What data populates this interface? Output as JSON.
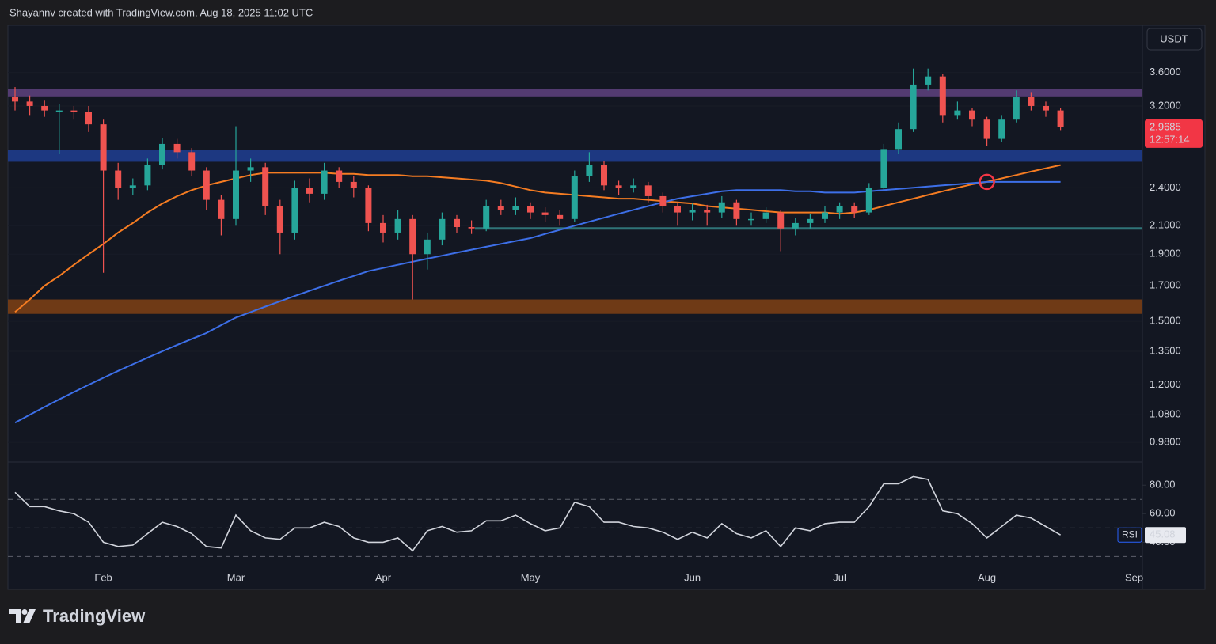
{
  "header": {
    "credit": "Shayannv created with TradingView.com, Aug 18, 2025 11:02 UTC"
  },
  "footer": {
    "brand": "TradingView"
  },
  "chart_data": [
    {
      "type": "candlestick",
      "currency": "USDT",
      "log_scale": true,
      "grid": true,
      "ylim": [
        0.917,
        4.25
      ],
      "yticks": [
        {
          "value": 0.98,
          "label": "0.9800"
        },
        {
          "value": 1.08,
          "label": "1.0800"
        },
        {
          "value": 1.2,
          "label": "1.2000"
        },
        {
          "value": 1.35,
          "label": "1.3500"
        },
        {
          "value": 1.5,
          "label": "1.5000"
        },
        {
          "value": 1.7,
          "label": "1.7000"
        },
        {
          "value": 1.9,
          "label": "1.9000"
        },
        {
          "value": 2.1,
          "label": "2.1000"
        },
        {
          "value": 2.4,
          "label": "2.4000"
        },
        {
          "value": 3.2,
          "label": "3.2000"
        },
        {
          "value": 3.6,
          "label": "3.6000"
        }
      ],
      "up_color": "#26a69a",
      "down_color": "#ef5350",
      "open": [
        3.3,
        3.25,
        3.2,
        3.15,
        3.15,
        3.13,
        3.0,
        2.55,
        2.4,
        2.42,
        2.6,
        2.8,
        2.72,
        2.55,
        2.3,
        2.15,
        2.55,
        2.58,
        2.25,
        2.05,
        2.4,
        2.35,
        2.55,
        2.45,
        2.4,
        2.12,
        2.05,
        2.15,
        1.9,
        2.0,
        2.15,
        2.09,
        2.08,
        2.25,
        2.22,
        2.25,
        2.2,
        2.18,
        2.15,
        2.5,
        2.6,
        2.42,
        2.4,
        2.42,
        2.33,
        2.25,
        2.2,
        2.22,
        2.2,
        2.28,
        2.15,
        2.15,
        2.2,
        2.08,
        2.12,
        2.15,
        2.2,
        2.25,
        2.2,
        2.4,
        2.75,
        2.95,
        3.45,
        3.55,
        3.1,
        3.15,
        3.05,
        2.85,
        3.05,
        3.3,
        3.2,
        3.15,
        null,
        null,
        null,
        null,
        null,
        null
      ],
      "high": [
        3.42,
        3.32,
        3.26,
        3.22,
        3.2,
        3.2,
        3.05,
        2.62,
        2.48,
        2.66,
        2.86,
        2.85,
        2.76,
        2.58,
        2.34,
        2.98,
        2.66,
        2.62,
        2.3,
        2.46,
        2.48,
        2.62,
        2.58,
        2.5,
        2.42,
        2.18,
        2.22,
        2.18,
        2.05,
        2.2,
        2.18,
        2.14,
        2.3,
        2.3,
        2.32,
        2.28,
        2.24,
        2.22,
        2.55,
        2.72,
        2.64,
        2.46,
        2.48,
        2.45,
        2.36,
        2.28,
        2.27,
        2.26,
        2.33,
        2.3,
        2.2,
        2.24,
        2.22,
        2.16,
        2.19,
        2.25,
        2.28,
        2.28,
        2.44,
        2.8,
        3.02,
        3.65,
        3.65,
        3.58,
        3.25,
        3.18,
        3.08,
        3.1,
        3.38,
        3.36,
        3.25,
        3.18,
        null,
        null,
        null,
        null,
        null,
        null
      ],
      "low": [
        3.15,
        3.1,
        3.08,
        2.7,
        3.05,
        2.92,
        1.78,
        2.3,
        2.34,
        2.38,
        2.56,
        2.66,
        2.5,
        2.22,
        2.03,
        2.1,
        2.45,
        2.18,
        1.9,
        2.0,
        2.28,
        2.3,
        2.4,
        2.32,
        2.06,
        1.98,
        2.0,
        1.62,
        1.8,
        1.96,
        2.05,
        2.04,
        2.06,
        2.18,
        2.18,
        2.15,
        2.13,
        2.1,
        2.13,
        2.45,
        2.38,
        2.34,
        2.36,
        2.28,
        2.2,
        2.1,
        2.14,
        2.1,
        2.16,
        2.1,
        2.1,
        2.12,
        1.92,
        2.03,
        2.08,
        2.12,
        2.15,
        2.16,
        2.18,
        2.38,
        2.7,
        2.92,
        3.38,
        3.02,
        3.05,
        2.98,
        2.78,
        2.82,
        3.02,
        3.15,
        3.08,
        2.94,
        null,
        null,
        null,
        null,
        null,
        null
      ],
      "close": [
        3.25,
        3.2,
        3.15,
        3.15,
        3.13,
        3.0,
        2.55,
        2.4,
        2.42,
        2.6,
        2.8,
        2.72,
        2.55,
        2.3,
        2.15,
        2.55,
        2.58,
        2.25,
        2.05,
        2.4,
        2.35,
        2.55,
        2.45,
        2.4,
        2.12,
        2.05,
        2.15,
        1.9,
        2.0,
        2.15,
        2.09,
        2.08,
        2.25,
        2.22,
        2.25,
        2.2,
        2.18,
        2.15,
        2.5,
        2.6,
        2.42,
        2.4,
        2.42,
        2.33,
        2.25,
        2.2,
        2.22,
        2.2,
        2.28,
        2.15,
        2.15,
        2.2,
        2.08,
        2.12,
        2.15,
        2.2,
        2.25,
        2.2,
        2.4,
        2.75,
        2.95,
        3.45,
        3.55,
        3.1,
        3.15,
        3.05,
        2.85,
        3.05,
        3.3,
        3.2,
        3.15,
        2.9685,
        null,
        null,
        null,
        null,
        null,
        null
      ],
      "countdown": "12:57:14",
      "series": [
        {
          "color": "#f57c22",
          "values": [
            1.55,
            1.62,
            1.7,
            1.76,
            1.83,
            1.9,
            1.97,
            2.05,
            2.12,
            2.2,
            2.27,
            2.33,
            2.38,
            2.42,
            2.45,
            2.48,
            2.51,
            2.53,
            2.53,
            2.53,
            2.53,
            2.53,
            2.52,
            2.52,
            2.51,
            2.51,
            2.51,
            2.5,
            2.5,
            2.49,
            2.48,
            2.47,
            2.46,
            2.44,
            2.41,
            2.38,
            2.36,
            2.35,
            2.34,
            2.33,
            2.32,
            2.31,
            2.31,
            2.3,
            2.29,
            2.28,
            2.27,
            2.25,
            2.24,
            2.23,
            2.22,
            2.21,
            2.2,
            2.2,
            2.2,
            2.2,
            2.19,
            2.2,
            2.22,
            2.25,
            2.28,
            2.31,
            2.34,
            2.37,
            2.4,
            2.43,
            2.45,
            2.48,
            2.51,
            2.54,
            2.57,
            2.6,
            null,
            null,
            null,
            null,
            null,
            null
          ]
        },
        {
          "color": "#3d6fe8",
          "values": [
            1.05,
            1.08,
            1.11,
            1.14,
            1.17,
            1.2,
            1.23,
            1.26,
            1.29,
            1.32,
            1.35,
            1.38,
            1.41,
            1.44,
            1.48,
            1.52,
            1.55,
            1.58,
            1.61,
            1.64,
            1.67,
            1.7,
            1.73,
            1.76,
            1.79,
            1.81,
            1.83,
            1.85,
            1.87,
            1.89,
            1.91,
            1.93,
            1.95,
            1.97,
            1.99,
            2.01,
            2.04,
            2.07,
            2.1,
            2.13,
            2.16,
            2.19,
            2.22,
            2.25,
            2.28,
            2.31,
            2.33,
            2.35,
            2.37,
            2.38,
            2.38,
            2.38,
            2.38,
            2.37,
            2.37,
            2.36,
            2.36,
            2.36,
            2.37,
            2.38,
            2.39,
            2.4,
            2.41,
            2.42,
            2.43,
            2.44,
            2.45,
            2.45,
            2.45,
            2.45,
            2.45,
            2.45,
            null,
            null,
            null,
            null,
            null,
            null
          ]
        }
      ],
      "zones": [
        {
          "low": 3.31,
          "high": 3.4,
          "color": "#5b3f7a"
        },
        {
          "low": 2.63,
          "high": 2.74,
          "color": "#1f3c8c"
        },
        {
          "low": 1.54,
          "high": 1.62,
          "color": "#7a3e15"
        }
      ],
      "levels": [
        {
          "value": 2.08,
          "color": "#2f7478"
        }
      ],
      "cross_marker_color": "#f23645"
    },
    {
      "type": "line",
      "name": "RSI",
      "color": "#d1d4dc",
      "categories": [
        null,
        null,
        null,
        null,
        null,
        null,
        "Feb",
        null,
        null,
        null,
        null,
        null,
        null,
        null,
        null,
        "Mar",
        null,
        null,
        null,
        null,
        null,
        null,
        null,
        null,
        null,
        "Apr",
        null,
        null,
        null,
        null,
        null,
        null,
        null,
        null,
        null,
        "May",
        null,
        null,
        null,
        null,
        null,
        null,
        null,
        null,
        null,
        null,
        "Jun",
        null,
        null,
        null,
        null,
        null,
        null,
        null,
        null,
        null,
        "Jul",
        null,
        null,
        null,
        null,
        null,
        null,
        null,
        null,
        null,
        "Aug",
        null,
        null,
        null,
        null,
        null,
        null,
        null,
        null,
        null,
        "Sep",
        null
      ],
      "values": [
        75,
        65,
        65,
        62,
        60,
        54,
        40,
        37,
        38,
        46,
        54,
        51,
        46,
        37,
        36,
        59,
        48,
        43,
        42,
        50,
        50,
        54,
        51,
        43,
        40,
        40,
        43,
        34,
        48,
        51,
        47,
        48,
        55,
        55,
        59,
        53,
        48,
        50,
        68,
        65,
        54,
        54,
        51,
        50,
        47,
        42,
        47,
        43,
        53,
        46,
        43,
        48,
        37,
        50,
        48,
        53,
        54,
        54,
        65,
        81,
        81,
        86,
        84,
        62,
        60,
        53,
        43,
        51,
        59,
        57,
        51,
        45.08,
        null,
        null,
        null,
        null,
        null,
        null
      ],
      "ylim": [
        23,
        94
      ],
      "yticks": [
        {
          "value": 40,
          "label": "40.00"
        },
        {
          "value": 60,
          "label": "60.00"
        },
        {
          "value": 80,
          "label": "80.00"
        }
      ],
      "levels": [
        30,
        50,
        70
      ]
    }
  ]
}
